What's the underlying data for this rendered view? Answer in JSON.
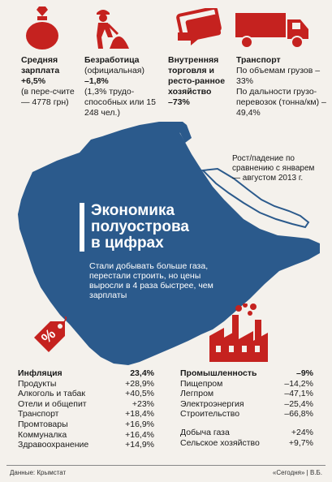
{
  "colors": {
    "accent_red": "#c5221f",
    "map_blue": "#2b5a8c",
    "sea": "#f4f1ec"
  },
  "indicators": [
    {
      "icon": "money-bag-icon",
      "title": "Средняя зарплата",
      "value": "+6,5%",
      "detail": "(в пере-счите — 4778 грн)"
    },
    {
      "icon": "construction-worker-icon",
      "title": "Безработица",
      "subtitle": "(официальная)",
      "value": "–1,8%",
      "detail": "(1,3% трудо-способных или 15 248 чел.)"
    },
    {
      "icon": "money-bill-icon",
      "title": "Внутренняя торговля и ресто-ранное хозяйство",
      "value": "–73%"
    },
    {
      "icon": "truck-icon",
      "title": "Транспорт",
      "line1": "По объемам грузов –33%",
      "line2": "По дальности грузо-перевозок (тонна/км) –49,4%"
    }
  ],
  "note": "Рост/падение по сравнению с январем— августом 2013 г.",
  "headline": {
    "line1": "Экономика",
    "line2": "полуострова",
    "line3": "в цифрах",
    "subtitle": "Стали добывать больше газа, перестали строить, но цены выросли в 4 раза быстрее, чем зарплаты"
  },
  "inflation": {
    "label": "Инфляция",
    "value": "23,4%",
    "items": [
      {
        "name": "Продукты",
        "value": "+28,9%"
      },
      {
        "name": "Алкоголь и табак",
        "value": "+40,5%"
      },
      {
        "name": "Отели и общепит",
        "value": "+23%"
      },
      {
        "name": "Транспорт",
        "value": "+18,4%"
      },
      {
        "name": "Промтовары",
        "value": "+16,9%"
      },
      {
        "name": "Коммуналка",
        "value": "+16,4%"
      },
      {
        "name": "Здравоохранение",
        "value": "+14,9%"
      }
    ]
  },
  "industry": {
    "label": "Промышленность",
    "value": "–9%",
    "items": [
      {
        "name": "Пищепром",
        "value": "–14,2%"
      },
      {
        "name": "Легпром",
        "value": "–47,1%"
      },
      {
        "name": "Электроэнергия",
        "value": "–25,4%"
      },
      {
        "name": "Строительство",
        "value": "–66,8%"
      },
      {
        "name": "Добыча газа",
        "value": "+24%"
      },
      {
        "name": "Сельское хозяйство",
        "value": "+9,7%"
      }
    ]
  },
  "footer": {
    "source": "Данные: Крымстат",
    "credit": "«Сегодня» | В.Б."
  },
  "percent_tag_symbol": "%"
}
